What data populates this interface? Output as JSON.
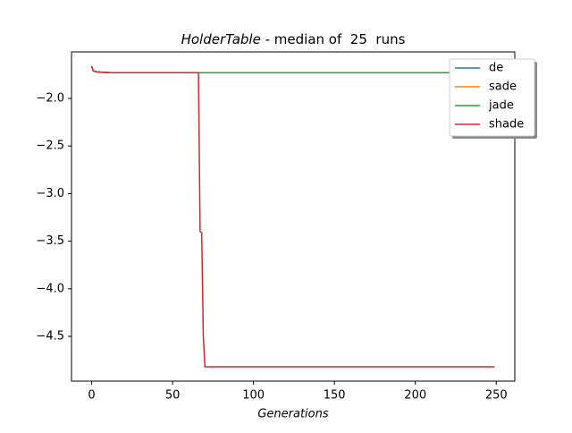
{
  "chart_data": {
    "type": "line",
    "title_name": "HolderTable",
    "title": " - median of  25  runs",
    "x_label": "Generations",
    "x": [
      0,
      1,
      3,
      6,
      12,
      66,
      67,
      68,
      69,
      70,
      249
    ],
    "series": [
      {
        "name": "de",
        "color": "#1f77b4",
        "values": [
          -1.66,
          -1.71,
          -1.72,
          -1.725,
          -1.73,
          -1.73,
          -1.73,
          -1.73,
          -1.73,
          -1.73,
          -1.73
        ]
      },
      {
        "name": "sade",
        "color": "#ff7f0e",
        "values": [
          -1.66,
          -1.71,
          -1.72,
          -1.725,
          -1.73,
          -1.73,
          -1.73,
          -1.73,
          -1.73,
          -1.73,
          -1.73
        ]
      },
      {
        "name": "jade",
        "color": "#2ca02c",
        "values": [
          -1.66,
          -1.71,
          -1.72,
          -1.725,
          -1.73,
          -1.73,
          -1.73,
          -1.73,
          -1.73,
          -1.73,
          -1.73
        ]
      },
      {
        "name": "shade",
        "color": "#d62728",
        "values": [
          -1.66,
          -1.71,
          -1.72,
          -1.725,
          -1.73,
          -1.73,
          -3.4,
          -3.41,
          -4.5,
          -4.82,
          -4.82
        ]
      }
    ],
    "xlim": [
      -12.45,
      261.45
    ],
    "xticks": [
      0,
      50,
      100,
      150,
      200,
      250
    ],
    "ylim": [
      -4.97,
      -1.511
    ],
    "yticks": [
      {
        "value": -2.0,
        "label": "−2.0"
      },
      {
        "value": -2.5,
        "label": "−2.5"
      },
      {
        "value": -3.0,
        "label": "−3.0"
      },
      {
        "value": -3.5,
        "label": "−3.5"
      },
      {
        "value": -4.0,
        "label": "−4.0"
      },
      {
        "value": -4.5,
        "label": "−4.5"
      }
    ],
    "legend": "upper right"
  }
}
